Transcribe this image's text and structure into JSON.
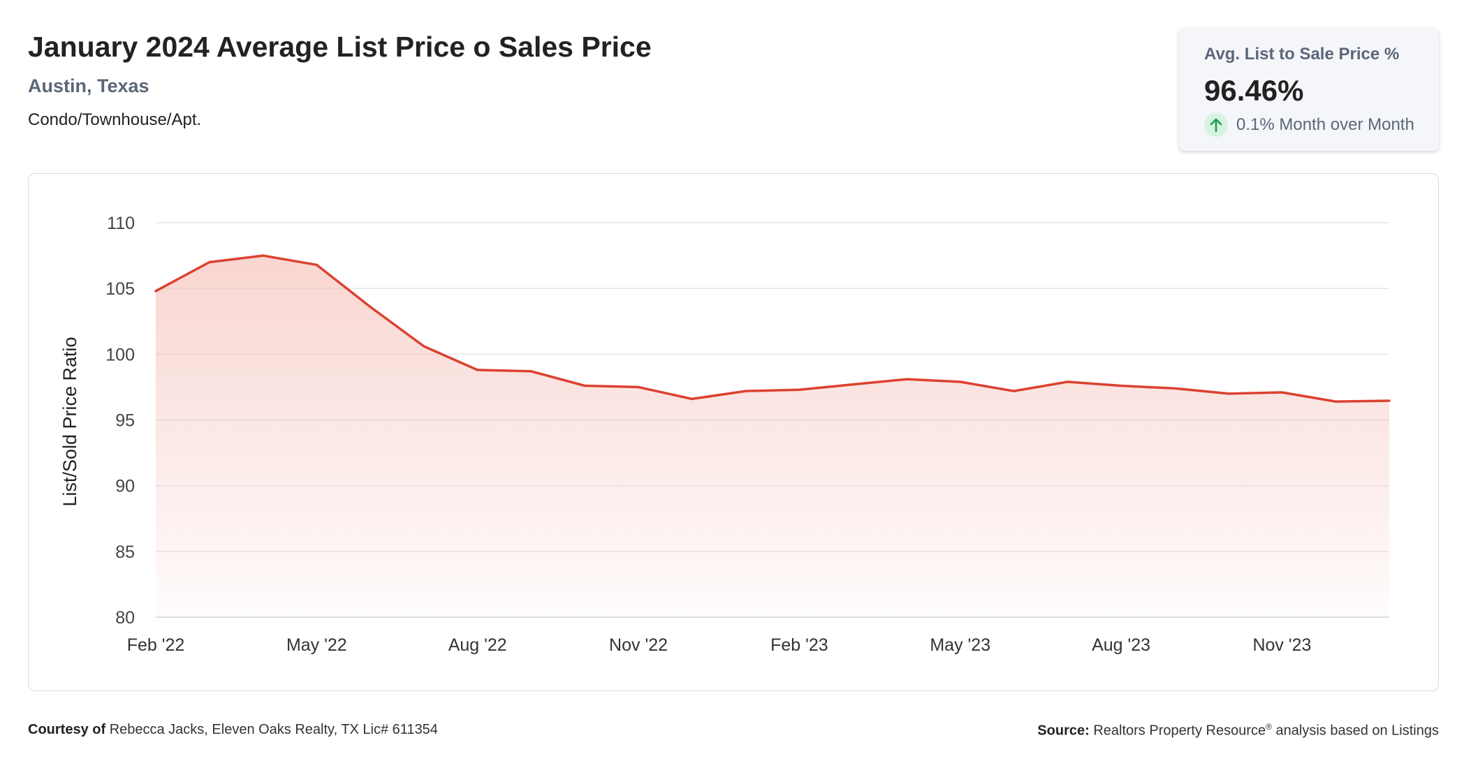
{
  "header": {
    "title": "January 2024 Average List Price o Sales Price",
    "location": "Austin, Texas",
    "property_type": "Condo/Townhouse/Apt."
  },
  "kpi": {
    "label": "Avg. List to Sale Price %",
    "value": "96.46%",
    "change": "0.1% Month over Month",
    "change_icon": "arrow-up-icon",
    "change_color": "#1f9d55"
  },
  "chart_data": {
    "type": "area",
    "ylabel": "List/Sold Price Ratio",
    "xlabel": "",
    "ylim": [
      80,
      110
    ],
    "yticks": [
      110,
      105,
      100,
      95,
      90,
      85,
      80
    ],
    "grid": true,
    "x_tick_labels": [
      "Feb '22",
      "May '22",
      "Aug '22",
      "Nov '22",
      "Feb '23",
      "May '23",
      "Aug '23",
      "Nov '23"
    ],
    "x": [
      "Feb 2022",
      "Mar 2022",
      "Apr 2022",
      "May 2022",
      "Jun 2022",
      "Jul 2022",
      "Aug 2022",
      "Sep 2022",
      "Oct 2022",
      "Nov 2022",
      "Dec 2022",
      "Jan 2023",
      "Feb 2023",
      "Mar 2023",
      "Apr 2023",
      "May 2023",
      "Jun 2023",
      "Jul 2023",
      "Aug 2023",
      "Sep 2023",
      "Oct 2023",
      "Nov 2023",
      "Dec 2023",
      "Jan 2024"
    ],
    "values": [
      104.8,
      107.0,
      107.5,
      106.8,
      103.6,
      100.6,
      98.8,
      98.7,
      97.6,
      97.5,
      96.6,
      97.2,
      97.3,
      97.7,
      98.1,
      97.9,
      97.2,
      97.9,
      97.6,
      97.4,
      97.0,
      97.1,
      96.4,
      96.46
    ],
    "line_color": "#dc4130",
    "fill_color": "#f3b4ab"
  },
  "footer": {
    "courtesy_label": "Courtesy of",
    "courtesy_text": "Rebecca Jacks, Eleven Oaks Realty, TX Lic# 611354",
    "source_label": "Source:",
    "source_text_a": "Realtors Property Resource",
    "source_sup": "®",
    "source_text_b": " analysis based on Listings"
  }
}
